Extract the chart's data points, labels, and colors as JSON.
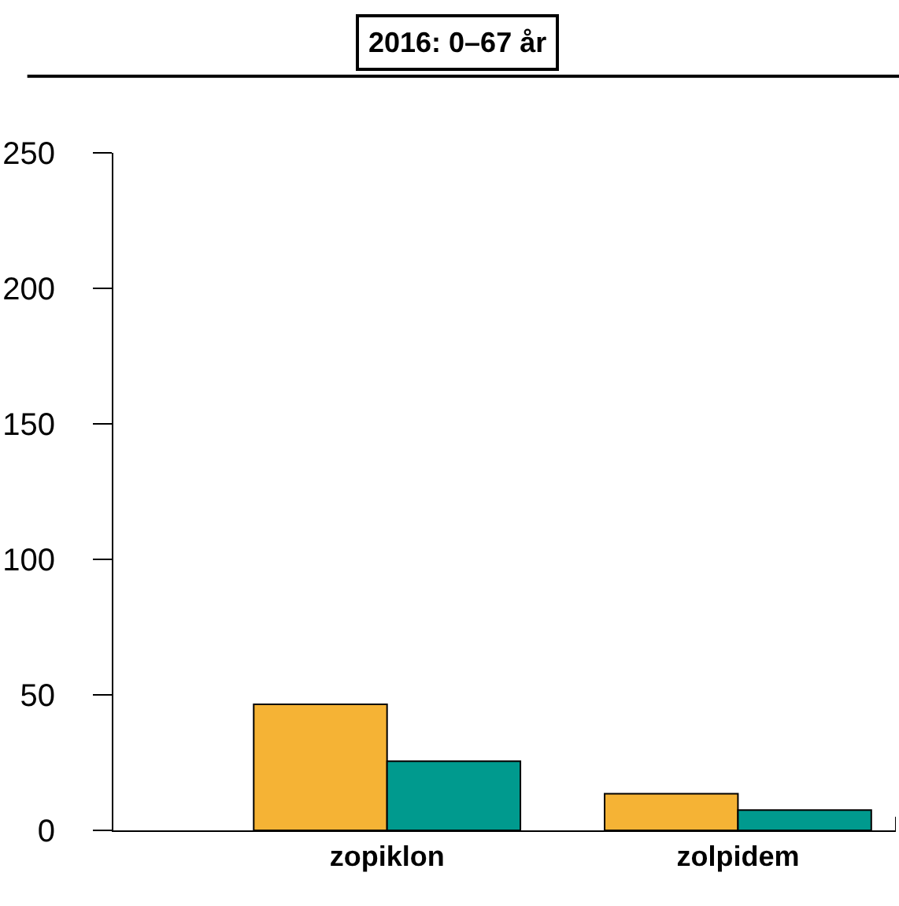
{
  "chart_data": {
    "type": "bar",
    "title": "2016: 0–67 år",
    "categories": [
      "zopiklon",
      "zolpidem"
    ],
    "series": [
      {
        "color": "#f5b335",
        "values": [
          46.5,
          13.5
        ]
      },
      {
        "color": "#009a8e",
        "values": [
          25.5,
          7.5
        ]
      }
    ],
    "ylim": [
      0,
      250
    ],
    "yticks": [
      0,
      50,
      100,
      150,
      200,
      250
    ],
    "grid": false
  }
}
